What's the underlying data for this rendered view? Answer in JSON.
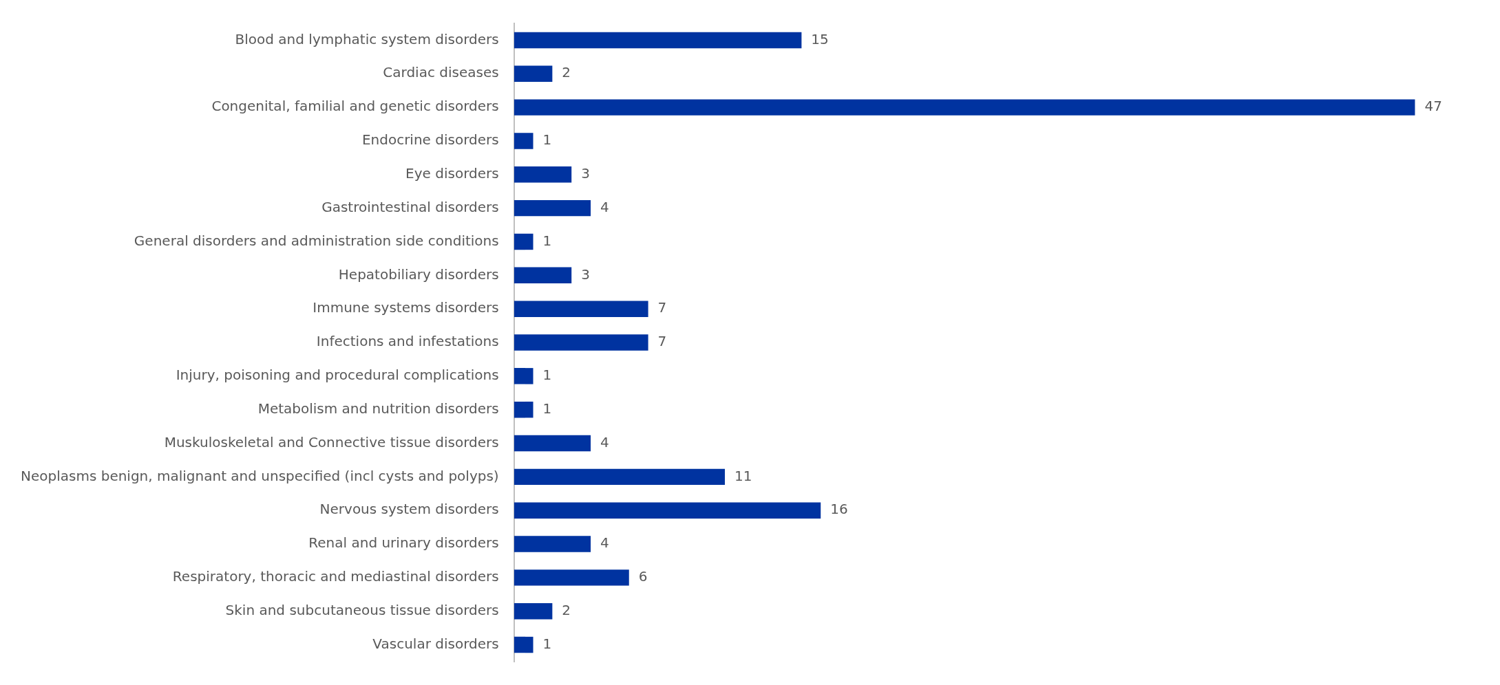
{
  "chart_data": {
    "type": "bar",
    "orientation": "horizontal",
    "categories": [
      "Blood and lymphatic system disorders",
      "Cardiac diseases",
      "Congenital, familial and genetic disorders",
      "Endocrine disorders",
      "Eye disorders",
      "Gastrointestinal disorders",
      "General disorders and administration side conditions",
      "Hepatobiliary disorders",
      "Immune systems disorders",
      "Infections and infestations",
      "Injury, poisoning and procedural complications",
      "Metabolism and nutrition disorders",
      "Muskuloskeletal and Connective tissue disorders",
      "Neoplasms benign, malignant and unspecified (incl cysts and polyps)",
      "Nervous system disorders",
      "Renal and urinary disorders",
      "Respiratory, thoracic and mediastinal disorders",
      "Skin and subcutaneous tissue disorders",
      "Vascular disorders"
    ],
    "values": [
      15,
      2,
      47,
      1,
      3,
      4,
      1,
      3,
      7,
      7,
      1,
      1,
      4,
      11,
      16,
      4,
      6,
      2,
      1
    ],
    "color": "#0033a0",
    "data_labels": true,
    "legend": false,
    "tick_labels": "y"
  }
}
